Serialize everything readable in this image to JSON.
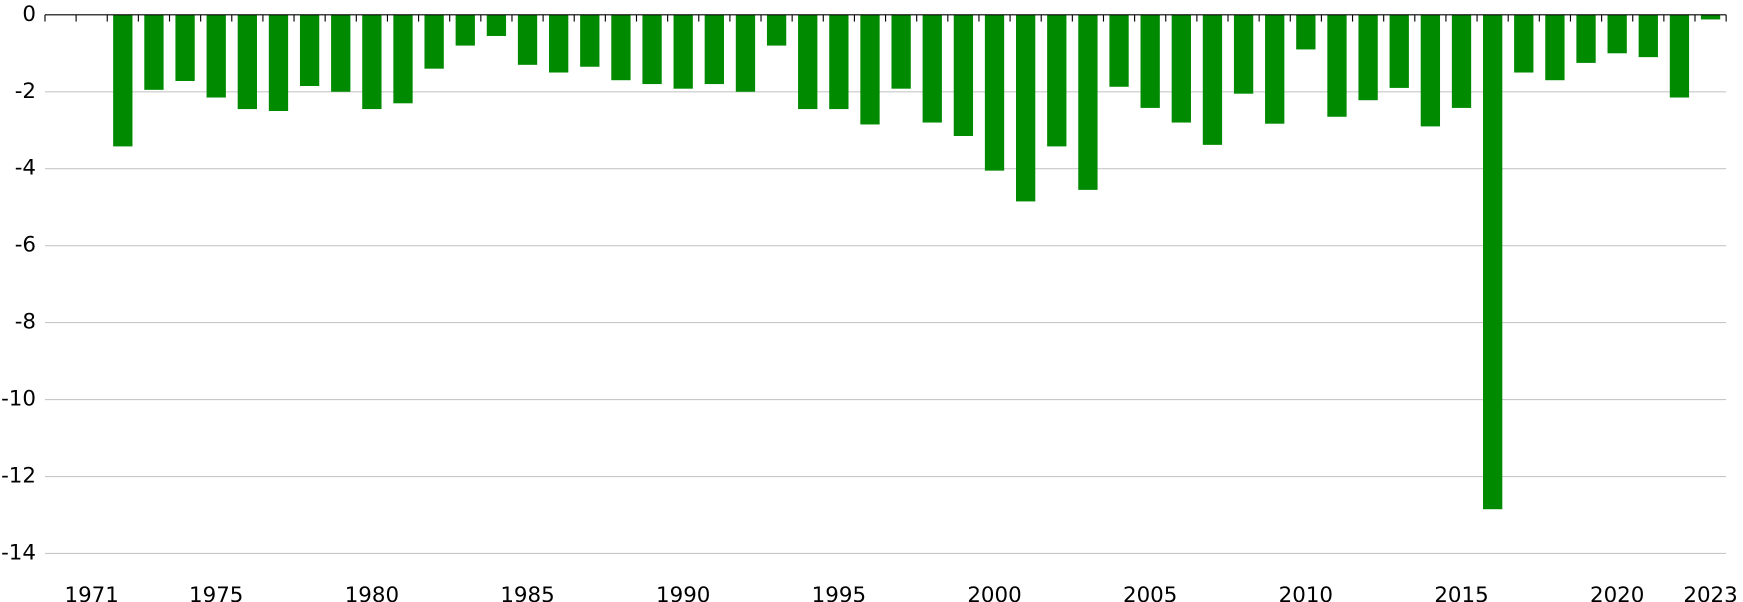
{
  "chart_data": {
    "type": "bar",
    "categories": [
      null,
      "1971",
      null,
      null,
      null,
      "1975",
      null,
      null,
      null,
      null,
      "1980",
      null,
      null,
      null,
      null,
      "1985",
      null,
      null,
      null,
      null,
      "1990",
      null,
      null,
      null,
      null,
      "1995",
      null,
      null,
      null,
      null,
      "2000",
      null,
      null,
      null,
      null,
      "2005",
      null,
      null,
      null,
      null,
      "2010",
      null,
      null,
      null,
      null,
      "2015",
      null,
      null,
      null,
      null,
      "2020",
      null,
      null,
      "2023"
    ],
    "values": [
      null,
      null,
      -3.42,
      -1.95,
      -1.72,
      -2.15,
      -2.45,
      -2.5,
      -1.85,
      -2.0,
      -2.45,
      -2.3,
      -1.4,
      -0.8,
      -0.55,
      -1.3,
      -1.5,
      -1.35,
      -1.7,
      -1.8,
      -1.92,
      -1.8,
      -2.0,
      -0.8,
      -2.45,
      -2.45,
      -2.85,
      -1.92,
      -2.8,
      -3.15,
      -4.05,
      -4.85,
      -3.42,
      -4.55,
      -1.87,
      -2.42,
      -2.8,
      -3.38,
      -2.05,
      -2.83,
      -0.9,
      -2.65,
      -2.22,
      -1.9,
      -2.9,
      -2.42,
      -12.85,
      -1.5,
      -1.7,
      -1.25,
      -1.0,
      -1.1,
      -2.15,
      -0.12
    ],
    "color": "#008a00",
    "ylim": [
      -14,
      0
    ],
    "yticks": [
      0,
      -2,
      -4,
      -6,
      -8,
      -10,
      -12,
      -14
    ],
    "grid": true
  }
}
